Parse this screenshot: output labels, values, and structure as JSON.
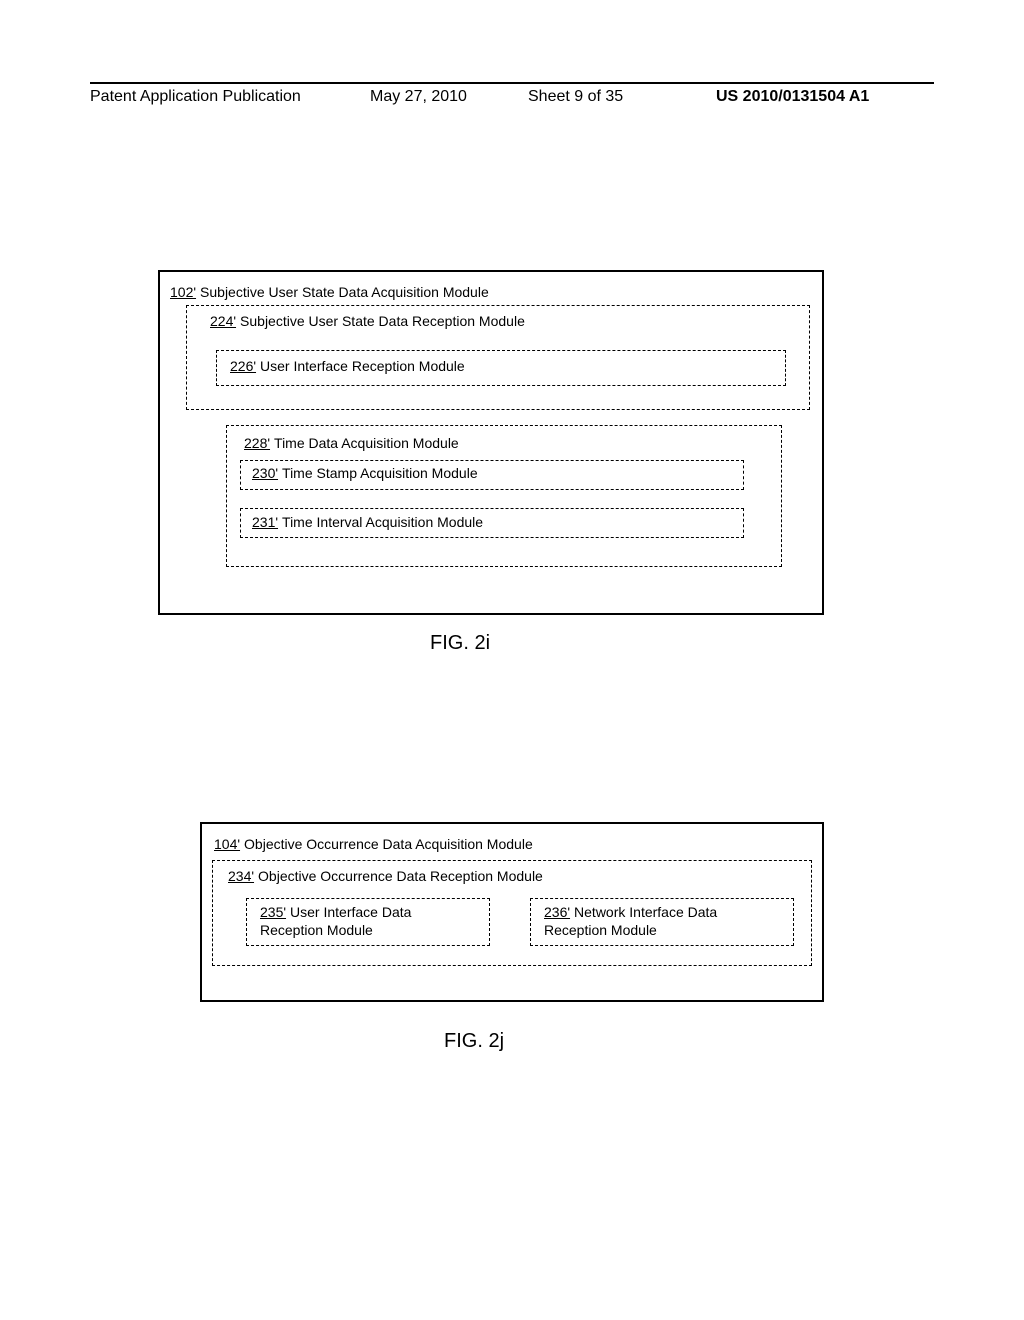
{
  "header": {
    "left": "Patent Application Publication",
    "date": "May 27, 2010",
    "sheet": "Sheet 9 of 35",
    "pubno": "US 2010/0131504 A1"
  },
  "fig2i": {
    "caption": "FIG. 2i",
    "m102": {
      "ref": "102'",
      "label": "Subjective User State Data Acquisition Module"
    },
    "m224": {
      "ref": "224'",
      "label": "Subjective User State Data Reception Module"
    },
    "m226": {
      "ref": "226'",
      "label": "User Interface Reception Module"
    },
    "m228": {
      "ref": "228'",
      "label": "Time Data Acquisition Module"
    },
    "m230": {
      "ref": "230'",
      "label": "Time Stamp Acquisition Module"
    },
    "m231": {
      "ref": "231'",
      "label": "Time Interval Acquisition Module"
    }
  },
  "fig2j": {
    "caption": "FIG. 2j",
    "m104": {
      "ref": "104'",
      "label": "Objective Occurrence Data Acquisition Module"
    },
    "m234": {
      "ref": "234'",
      "label": "Objective Occurrence Data Reception Module"
    },
    "m235": {
      "ref": "235'",
      "label_l1": "User Interface Data",
      "label_l2": "Reception Module"
    },
    "m236": {
      "ref": "236'",
      "label_l1": "Network Interface Data",
      "label_l2": "Reception Module"
    }
  }
}
